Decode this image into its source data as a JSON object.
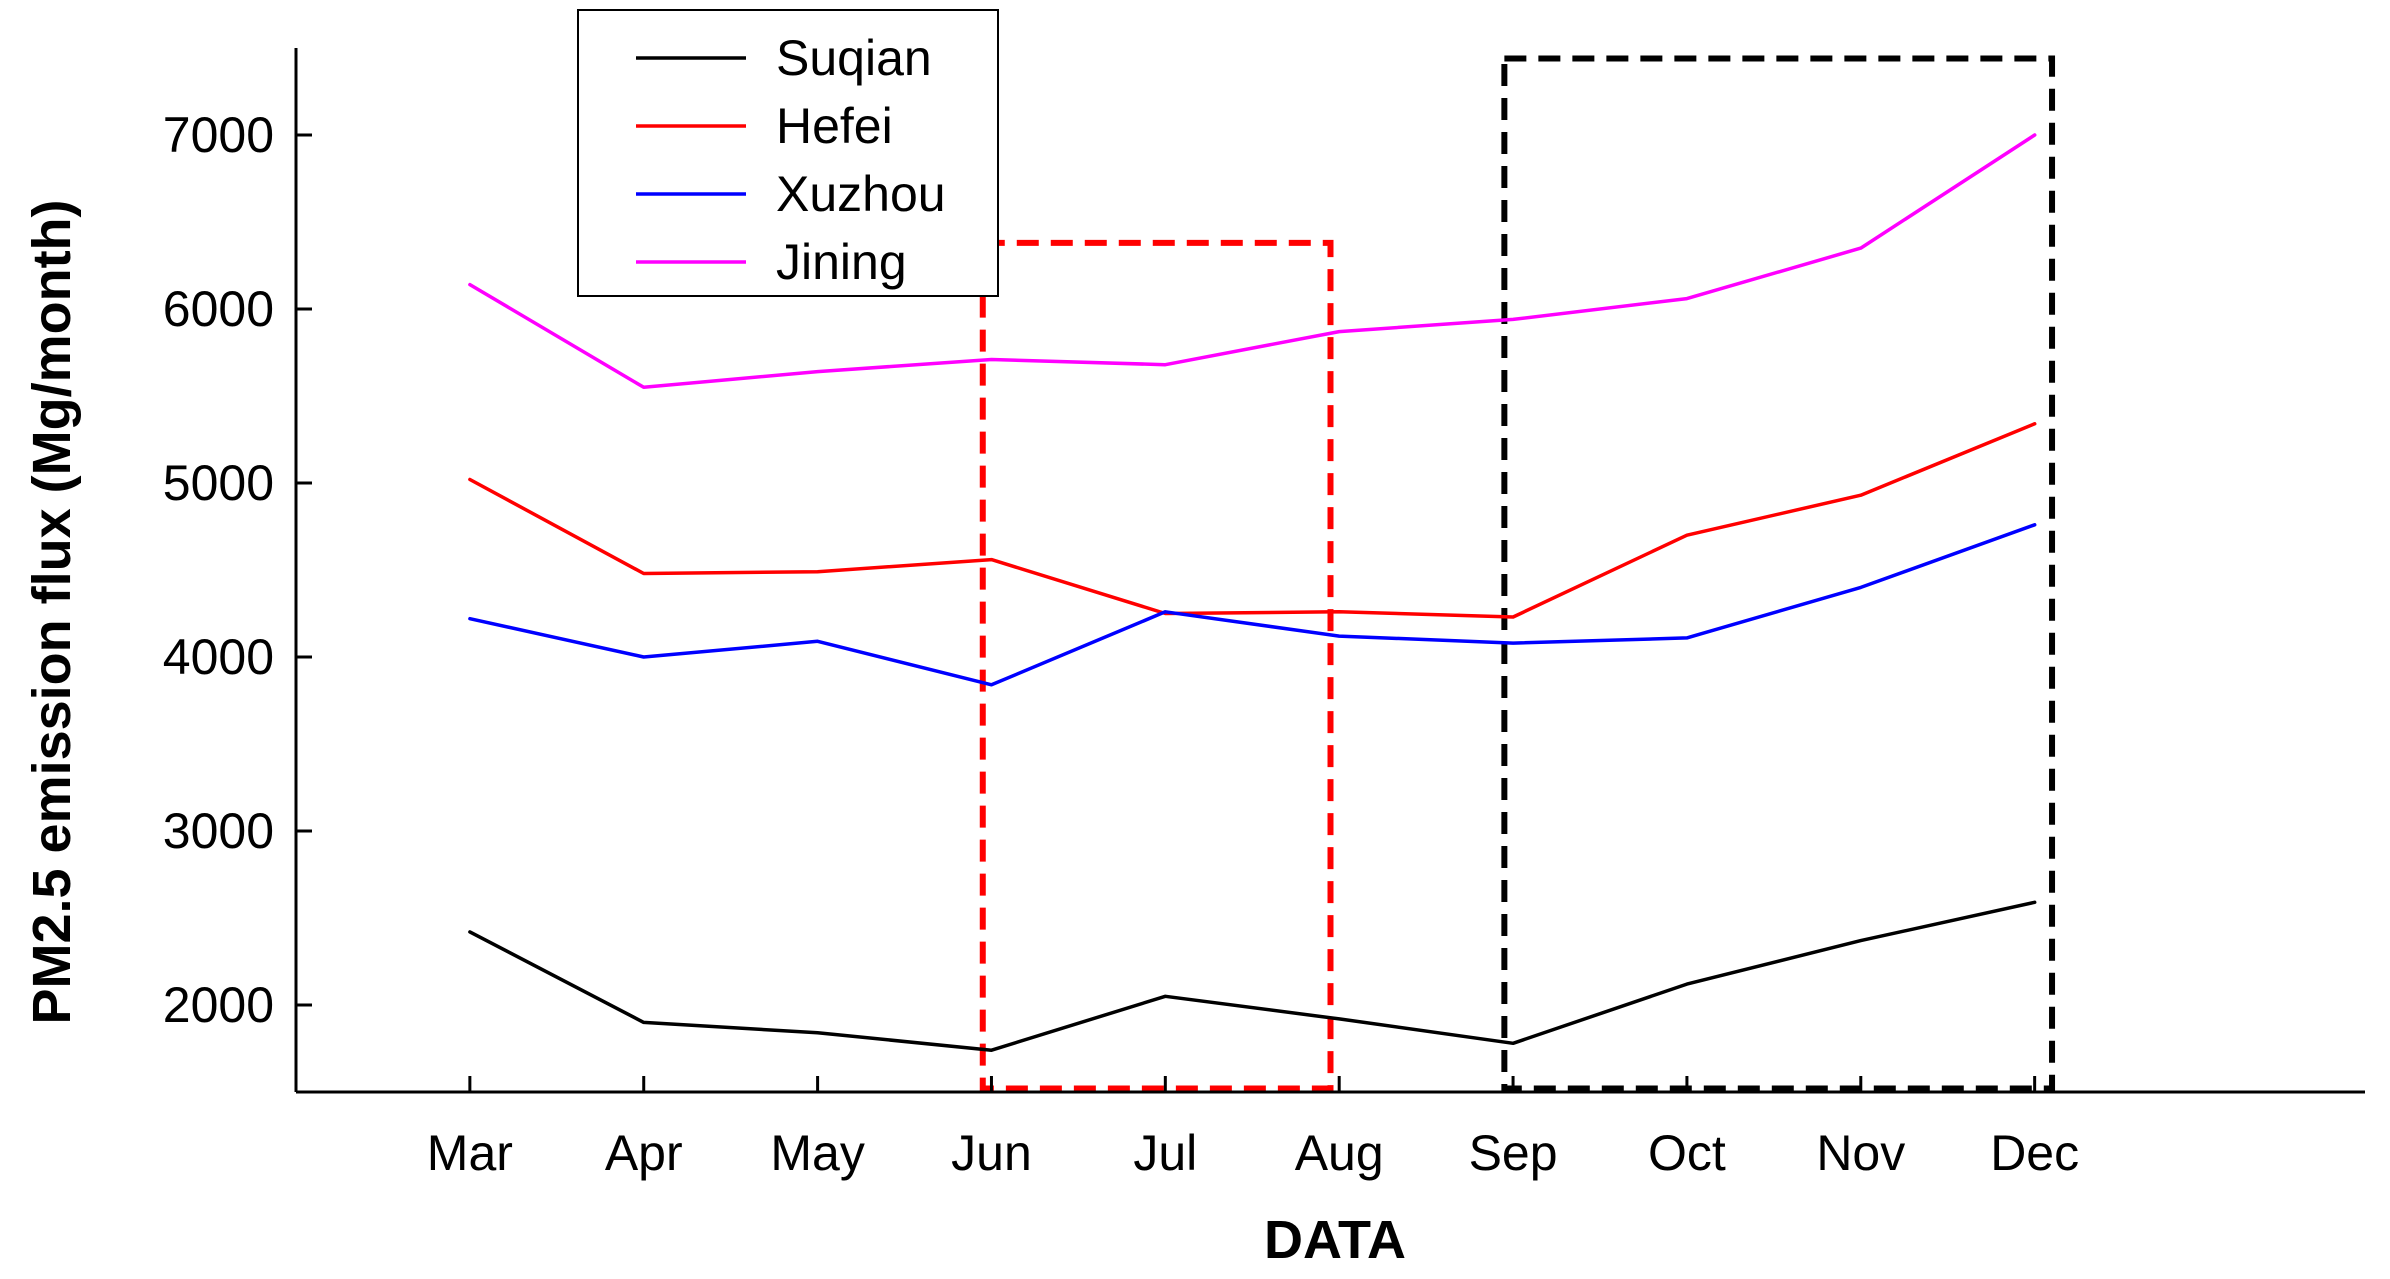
{
  "chart_data": {
    "type": "line",
    "title": "",
    "xlabel": "DATA",
    "ylabel": "PM2.5 emission flux (Mg/month)",
    "categories": [
      "Mar",
      "Apr",
      "May",
      "Jun",
      "Jul",
      "Aug",
      "Sep",
      "Oct",
      "Nov",
      "Dec"
    ],
    "xlim": [
      -1,
      10.9
    ],
    "ylim": [
      1500,
      7500
    ],
    "yticks": [
      2000,
      3000,
      4000,
      5000,
      6000,
      7000
    ],
    "grid": false,
    "legend_position": "top-left",
    "series": [
      {
        "name": "Suqian",
        "color": "#000000",
        "values": [
          2420,
          1900,
          1840,
          1740,
          2050,
          1920,
          1780,
          2120,
          2370,
          2590
        ]
      },
      {
        "name": "Hefei",
        "color": "#ff0000",
        "values": [
          5020,
          4480,
          4490,
          4560,
          4250,
          4260,
          4230,
          4700,
          4930,
          5340
        ]
      },
      {
        "name": "Xuzhou",
        "color": "#0000ff",
        "values": [
          4220,
          4000,
          4090,
          3840,
          4260,
          4120,
          4080,
          4110,
          4400,
          4760
        ]
      },
      {
        "name": "Jining",
        "color": "#ff00ff",
        "values": [
          6140,
          5550,
          5640,
          5710,
          5680,
          5870,
          5940,
          6060,
          6350,
          7000
        ]
      }
    ],
    "highlight_boxes": [
      {
        "name": "summer-highlight-box",
        "color": "#ff0000",
        "x_from": 2.95,
        "x_to": 4.95,
        "y_from": 1520,
        "y_to": 6380
      },
      {
        "name": "winter-highlight-box",
        "color": "#000000",
        "x_from": 5.95,
        "x_to": 9.1,
        "y_from": 1520,
        "y_to": 7440
      }
    ]
  }
}
